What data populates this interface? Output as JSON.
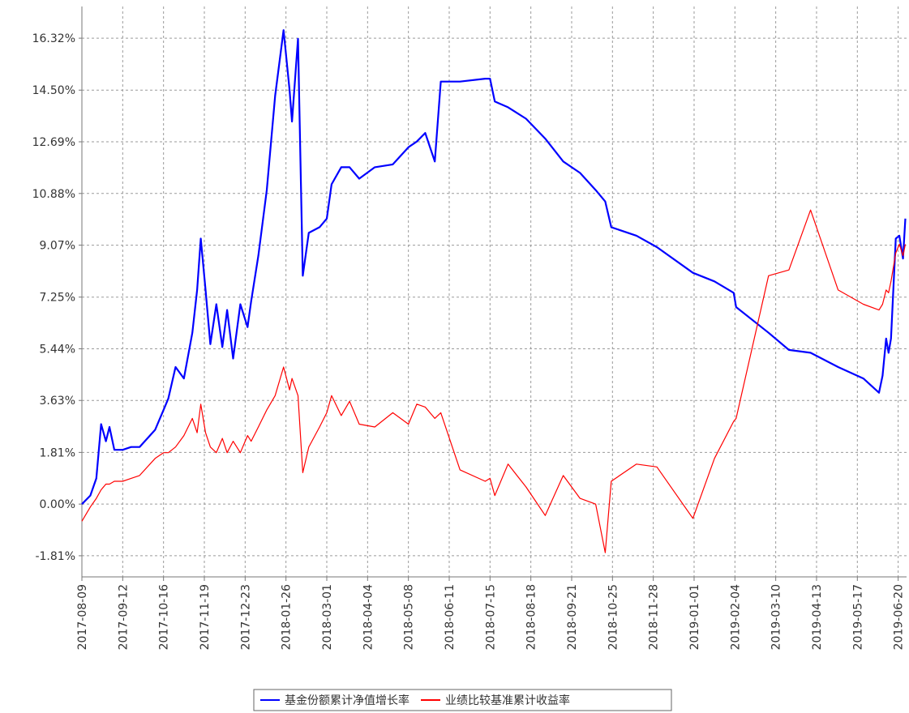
{
  "chart_data": {
    "type": "line",
    "x": [
      "2017-08-09",
      "2017-08-16",
      "2017-08-21",
      "2017-08-25",
      "2017-08-29",
      "2017-09-01",
      "2017-09-05",
      "2017-09-12",
      "2017-09-19",
      "2017-09-26",
      "2017-10-09",
      "2017-10-16",
      "2017-10-20",
      "2017-10-26",
      "2017-11-02",
      "2017-11-09",
      "2017-11-13",
      "2017-11-16",
      "2017-11-20",
      "2017-11-24",
      "2017-11-29",
      "2017-12-04",
      "2017-12-08",
      "2017-12-13",
      "2017-12-19",
      "2017-12-25",
      "2017-12-28",
      "2018-01-03",
      "2018-01-10",
      "2018-01-17",
      "2018-01-24",
      "2018-01-29",
      "2018-01-31",
      "2018-02-05",
      "2018-02-09",
      "2018-02-14",
      "2018-02-23",
      "2018-03-01",
      "2018-03-05",
      "2018-03-13",
      "2018-03-20",
      "2018-03-28",
      "2018-04-10",
      "2018-04-25",
      "2018-05-08",
      "2018-05-15",
      "2018-05-22",
      "2018-05-30",
      "2018-06-04",
      "2018-06-20",
      "2018-07-11",
      "2018-07-15",
      "2018-07-19",
      "2018-07-30",
      "2018-08-14",
      "2018-08-30",
      "2018-09-14",
      "2018-09-28",
      "2018-10-11",
      "2018-10-19",
      "2018-10-24",
      "2018-11-14",
      "2018-12-01",
      "2018-12-31",
      "2019-01-18",
      "2019-02-03",
      "2019-02-05",
      "2019-03-04",
      "2019-03-21",
      "2019-04-08",
      "2019-05-01",
      "2019-05-22",
      "2019-06-04",
      "2019-06-07",
      "2019-06-10",
      "2019-06-12",
      "2019-06-14",
      "2019-06-18",
      "2019-06-21",
      "2019-06-24",
      "2019-06-26"
    ],
    "series": [
      {
        "name": "基金份额累计净值增长率",
        "color": "#0000ff",
        "values": [
          0,
          0.3,
          0.9,
          2.8,
          2.2,
          2.7,
          1.9,
          1.9,
          2.0,
          2.0,
          2.6,
          3.3,
          3.7,
          4.8,
          4.4,
          6.0,
          7.5,
          9.3,
          7.5,
          5.6,
          7.0,
          5.5,
          6.8,
          5.1,
          7.0,
          6.2,
          7.1,
          8.7,
          11.0,
          14.3,
          16.6,
          14.5,
          13.4,
          16.3,
          8.0,
          9.5,
          9.7,
          10.0,
          11.2,
          11.8,
          11.8,
          11.4,
          11.8,
          11.9,
          12.5,
          12.7,
          13.0,
          12.0,
          14.8,
          14.8,
          14.9,
          14.9,
          14.1,
          13.9,
          13.5,
          12.8,
          12.0,
          11.6,
          11.0,
          10.6,
          9.7,
          9.4,
          9.0,
          8.1,
          7.8,
          7.4,
          6.9,
          6.0,
          5.4,
          5.3,
          4.8,
          4.4,
          3.9,
          4.5,
          5.8,
          5.3,
          5.8,
          9.3,
          9.4,
          8.6,
          10.0
        ]
      },
      {
        "name": "业绩比较基准累计收益率",
        "color": "#ff0000",
        "values": [
          -0.6,
          -0.1,
          0.2,
          0.5,
          0.7,
          0.7,
          0.8,
          0.8,
          0.9,
          1.0,
          1.6,
          1.8,
          1.8,
          2.0,
          2.4,
          3.0,
          2.5,
          3.5,
          2.5,
          2.0,
          1.8,
          2.3,
          1.8,
          2.2,
          1.8,
          2.4,
          2.2,
          2.7,
          3.3,
          3.8,
          4.8,
          4.0,
          4.4,
          3.8,
          1.1,
          2.0,
          2.7,
          3.2,
          3.8,
          3.1,
          3.6,
          2.8,
          2.7,
          3.2,
          2.8,
          3.5,
          3.4,
          3.0,
          3.2,
          1.2,
          0.8,
          0.9,
          0.3,
          1.4,
          0.6,
          -0.4,
          1.0,
          0.2,
          0.0,
          -1.7,
          0.8,
          1.4,
          1.3,
          -0.5,
          1.6,
          2.9,
          3.0,
          8.0,
          8.2,
          10.3,
          7.5,
          7.0,
          6.8,
          7.0,
          7.5,
          7.4,
          7.8,
          8.8,
          9.1,
          8.7,
          9.1
        ]
      }
    ],
    "xlim": [
      "2017-08-09",
      "2019-06-27"
    ],
    "xticks": [
      "2017-08-09",
      "2017-09-12",
      "2017-10-16",
      "2017-11-19",
      "2017-12-23",
      "2018-01-26",
      "2018-03-01",
      "2018-04-04",
      "2018-05-08",
      "2018-06-11",
      "2018-07-15",
      "2018-08-18",
      "2018-09-21",
      "2018-10-25",
      "2018-11-28",
      "2019-01-01",
      "2019-02-04",
      "2019-03-10",
      "2019-04-13",
      "2019-05-17",
      "2019-06-20"
    ],
    "ylim": [
      -2.55,
      17.43
    ],
    "yticks": [
      {
        "value": -1.81,
        "label": "-1.81%"
      },
      {
        "value": 0,
        "label": "0.00%"
      },
      {
        "value": 1.81,
        "label": "1.81%"
      },
      {
        "value": 3.63,
        "label": "3.63%"
      },
      {
        "value": 5.44,
        "label": "5.44%"
      },
      {
        "value": 7.25,
        "label": "7.25%"
      },
      {
        "value": 9.07,
        "label": "9.07%"
      },
      {
        "value": 10.88,
        "label": "10.88%"
      },
      {
        "value": 12.69,
        "label": "12.69%"
      },
      {
        "value": 14.5,
        "label": "14.50%"
      },
      {
        "value": 16.32,
        "label": "16.32%"
      }
    ],
    "grid": true,
    "legend": "bottom"
  }
}
